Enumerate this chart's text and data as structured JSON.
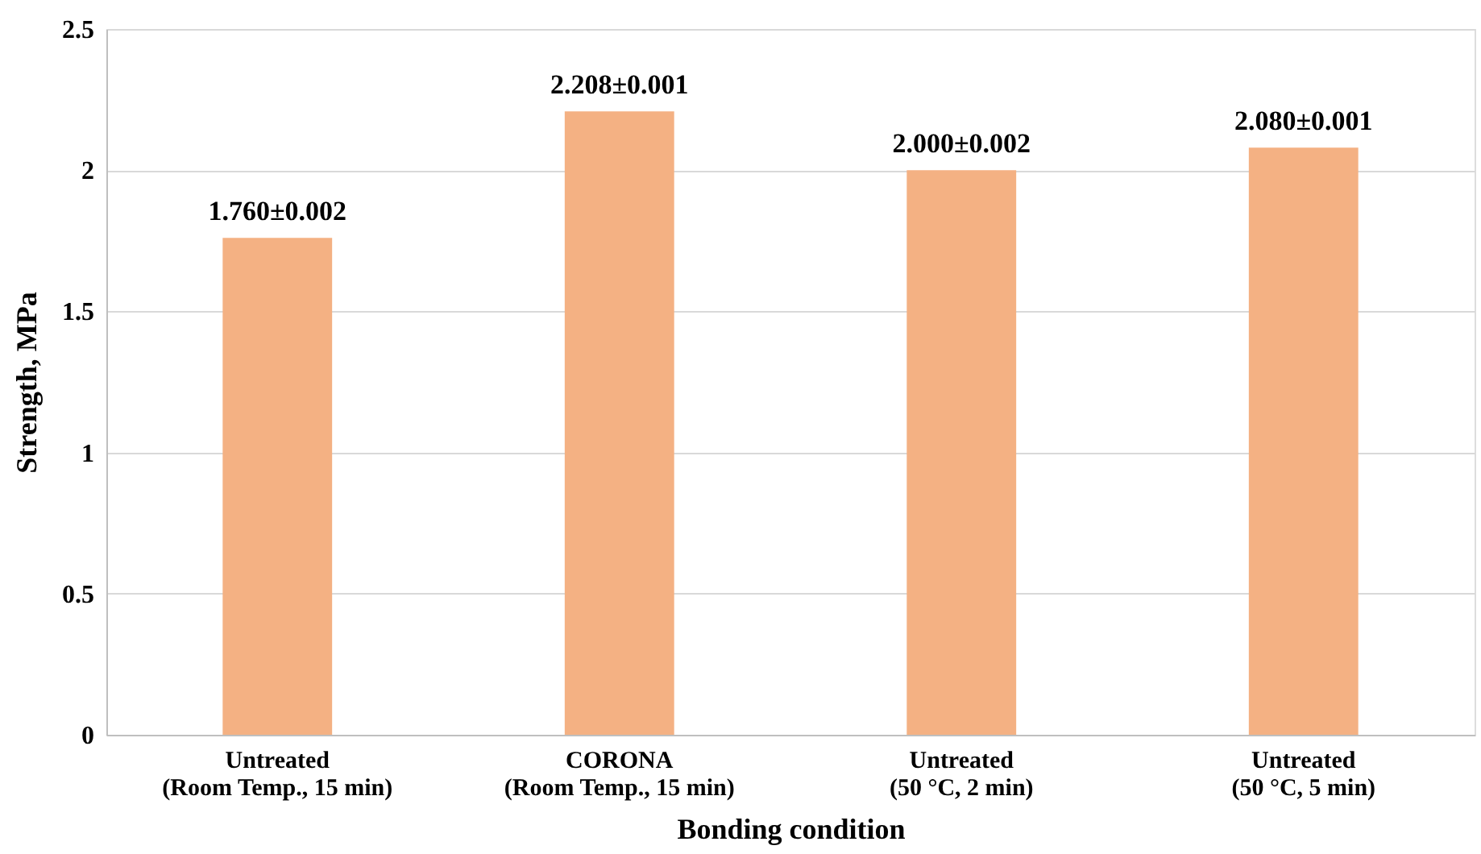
{
  "chart_data": {
    "type": "bar",
    "xlabel": "Bonding condition",
    "ylabel": "Strength, MPa",
    "categories": [
      "Untreated\n(Room Temp., 15 min)",
      "CORONA\n(Room Temp., 15 min)",
      "Untreated\n(50 °C, 2 min)",
      "Untreated\n(50 °C, 5 min)"
    ],
    "values": [
      1.76,
      2.208,
      2.0,
      2.08
    ],
    "value_labels": [
      "1.760±0.002",
      "2.208±0.001",
      "2.000±0.002",
      "2.080±0.001"
    ],
    "color": "#f4b183",
    "ylim": [
      0,
      2.5
    ],
    "yticks": [
      0,
      0.5,
      1,
      1.5,
      2,
      2.5
    ],
    "grid": "y"
  }
}
